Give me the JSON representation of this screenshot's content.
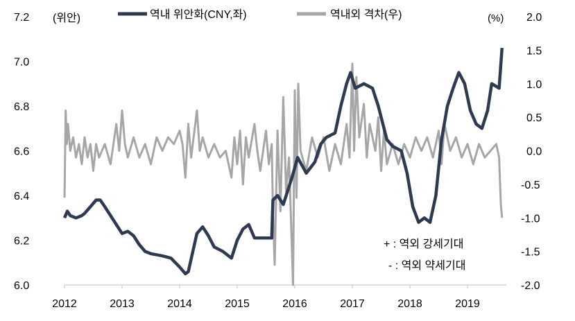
{
  "chart_data": {
    "type": "line",
    "title": "",
    "left_axis": {
      "unit_label": "(위안)",
      "ylim": [
        6.0,
        7.2
      ],
      "ticks": [
        "6.0",
        "6.2",
        "6.4",
        "6.6",
        "6.8",
        "7.0",
        "7.2"
      ]
    },
    "right_axis": {
      "unit_label": "(%)",
      "ylim": [
        -2.0,
        2.0
      ],
      "ticks": [
        "-2.0",
        "-1.5",
        "-1.0",
        "-0.5",
        "0.0",
        "0.5",
        "1.0",
        "1.5",
        "2.0"
      ]
    },
    "x_ticks": [
      "2012",
      "2013",
      "2014",
      "2015",
      "2016",
      "2017",
      "2018",
      "2019"
    ],
    "xlim": [
      2012.0,
      2019.65
    ],
    "legend_position": "top",
    "annotations": [
      "+ : 역외 강세기대",
      "- : 역외 약세기대"
    ],
    "series": [
      {
        "name": "역내 위안화(CNY,좌)",
        "axis": "left",
        "color": "#2e3a4f",
        "points": [
          [
            2012.0,
            6.3
          ],
          [
            2012.05,
            6.33
          ],
          [
            2012.1,
            6.31
          ],
          [
            2012.2,
            6.3
          ],
          [
            2012.3,
            6.31
          ],
          [
            2012.35,
            6.32
          ],
          [
            2012.45,
            6.35
          ],
          [
            2012.55,
            6.38
          ],
          [
            2012.62,
            6.38
          ],
          [
            2012.7,
            6.35
          ],
          [
            2012.8,
            6.31
          ],
          [
            2012.9,
            6.27
          ],
          [
            2013.0,
            6.23
          ],
          [
            2013.1,
            6.24
          ],
          [
            2013.2,
            6.22
          ],
          [
            2013.3,
            6.18
          ],
          [
            2013.4,
            6.15
          ],
          [
            2013.5,
            6.14
          ],
          [
            2013.7,
            6.13
          ],
          [
            2013.85,
            6.12
          ],
          [
            2014.0,
            6.08
          ],
          [
            2014.1,
            6.05
          ],
          [
            2014.15,
            6.06
          ],
          [
            2014.22,
            6.14
          ],
          [
            2014.3,
            6.23
          ],
          [
            2014.4,
            6.26
          ],
          [
            2014.5,
            6.22
          ],
          [
            2014.6,
            6.17
          ],
          [
            2014.75,
            6.15
          ],
          [
            2014.9,
            6.12
          ],
          [
            2015.0,
            6.2
          ],
          [
            2015.1,
            6.25
          ],
          [
            2015.2,
            6.27
          ],
          [
            2015.3,
            6.21
          ],
          [
            2015.45,
            6.21
          ],
          [
            2015.6,
            6.21
          ],
          [
            2015.62,
            6.38
          ],
          [
            2015.7,
            6.4
          ],
          [
            2015.8,
            6.36
          ],
          [
            2015.95,
            6.48
          ],
          [
            2016.05,
            6.57
          ],
          [
            2016.2,
            6.5
          ],
          [
            2016.35,
            6.55
          ],
          [
            2016.45,
            6.63
          ],
          [
            2016.55,
            6.66
          ],
          [
            2016.7,
            6.68
          ],
          [
            2016.8,
            6.8
          ],
          [
            2016.9,
            6.9
          ],
          [
            2016.97,
            6.95
          ],
          [
            2017.05,
            6.88
          ],
          [
            2017.2,
            6.9
          ],
          [
            2017.35,
            6.88
          ],
          [
            2017.45,
            6.8
          ],
          [
            2017.6,
            6.65
          ],
          [
            2017.7,
            6.62
          ],
          [
            2017.85,
            6.6
          ],
          [
            2017.95,
            6.5
          ],
          [
            2018.05,
            6.35
          ],
          [
            2018.15,
            6.28
          ],
          [
            2018.25,
            6.3
          ],
          [
            2018.35,
            6.28
          ],
          [
            2018.45,
            6.4
          ],
          [
            2018.55,
            6.65
          ],
          [
            2018.65,
            6.8
          ],
          [
            2018.75,
            6.88
          ],
          [
            2018.85,
            6.95
          ],
          [
            2018.95,
            6.9
          ],
          [
            2019.05,
            6.78
          ],
          [
            2019.15,
            6.72
          ],
          [
            2019.25,
            6.7
          ],
          [
            2019.35,
            6.78
          ],
          [
            2019.42,
            6.9
          ],
          [
            2019.55,
            6.88
          ],
          [
            2019.6,
            7.06
          ]
        ]
      },
      {
        "name": "역내외 격차(우)",
        "axis": "right",
        "color": "#a6a6a6",
        "points": [
          [
            2012.0,
            -0.7
          ],
          [
            2012.02,
            0.6
          ],
          [
            2012.04,
            0.1
          ],
          [
            2012.06,
            0.4
          ],
          [
            2012.1,
            0.0
          ],
          [
            2012.15,
            0.2
          ],
          [
            2012.2,
            -0.1
          ],
          [
            2012.25,
            0.1
          ],
          [
            2012.3,
            -0.2
          ],
          [
            2012.35,
            0.2
          ],
          [
            2012.4,
            -0.1
          ],
          [
            2012.45,
            0.1
          ],
          [
            2012.5,
            -0.3
          ],
          [
            2012.55,
            0.1
          ],
          [
            2012.6,
            -0.1
          ],
          [
            2012.7,
            0.1
          ],
          [
            2012.8,
            -0.2
          ],
          [
            2012.9,
            0.4
          ],
          [
            2012.95,
            0.0
          ],
          [
            2013.0,
            0.6
          ],
          [
            2013.05,
            0.1
          ],
          [
            2013.1,
            -0.1
          ],
          [
            2013.2,
            0.2
          ],
          [
            2013.3,
            -0.1
          ],
          [
            2013.4,
            0.1
          ],
          [
            2013.5,
            -0.2
          ],
          [
            2013.6,
            0.2
          ],
          [
            2013.7,
            0.0
          ],
          [
            2013.8,
            0.2
          ],
          [
            2013.9,
            0.1
          ],
          [
            2014.0,
            0.3
          ],
          [
            2014.05,
            0.1
          ],
          [
            2014.1,
            -0.4
          ],
          [
            2014.15,
            0.4
          ],
          [
            2014.2,
            -0.1
          ],
          [
            2014.3,
            0.6
          ],
          [
            2014.35,
            0.0
          ],
          [
            2014.4,
            0.2
          ],
          [
            2014.5,
            -0.1
          ],
          [
            2014.6,
            0.1
          ],
          [
            2014.7,
            -0.1
          ],
          [
            2014.8,
            0.0
          ],
          [
            2014.9,
            -0.4
          ],
          [
            2014.95,
            0.2
          ],
          [
            2015.0,
            -0.2
          ],
          [
            2015.05,
            0.3
          ],
          [
            2015.1,
            -0.5
          ],
          [
            2015.15,
            0.2
          ],
          [
            2015.2,
            -0.1
          ],
          [
            2015.3,
            0.4
          ],
          [
            2015.35,
            0.0
          ],
          [
            2015.4,
            -0.3
          ],
          [
            2015.5,
            0.3
          ],
          [
            2015.55,
            -0.2
          ],
          [
            2015.6,
            0.1
          ],
          [
            2015.62,
            -0.9
          ],
          [
            2015.65,
            -1.7
          ],
          [
            2015.7,
            0.3
          ],
          [
            2015.75,
            -0.9
          ],
          [
            2015.8,
            0.8
          ],
          [
            2015.85,
            -0.6
          ],
          [
            2015.9,
            -0.1
          ],
          [
            2015.97,
            -2.0
          ],
          [
            2016.0,
            0.9
          ],
          [
            2016.03,
            -0.7
          ],
          [
            2016.06,
            1.0
          ],
          [
            2016.1,
            0.0
          ],
          [
            2016.2,
            -0.3
          ],
          [
            2016.3,
            0.2
          ],
          [
            2016.4,
            -0.1
          ],
          [
            2016.5,
            0.2
          ],
          [
            2016.6,
            -0.3
          ],
          [
            2016.7,
            0.1
          ],
          [
            2016.8,
            -0.2
          ],
          [
            2016.9,
            0.4
          ],
          [
            2016.95,
            -0.1
          ],
          [
            2017.0,
            1.3
          ],
          [
            2017.03,
            0.0
          ],
          [
            2017.07,
            1.1
          ],
          [
            2017.12,
            0.2
          ],
          [
            2017.2,
            0.7
          ],
          [
            2017.25,
            -0.1
          ],
          [
            2017.3,
            0.4
          ],
          [
            2017.4,
            0.0
          ],
          [
            2017.45,
            0.5
          ],
          [
            2017.5,
            -0.3
          ],
          [
            2017.55,
            0.3
          ],
          [
            2017.6,
            -0.2
          ],
          [
            2017.7,
            0.1
          ],
          [
            2017.8,
            -0.2
          ],
          [
            2017.9,
            0.1
          ],
          [
            2018.0,
            -0.1
          ],
          [
            2018.1,
            0.2
          ],
          [
            2018.2,
            0.0
          ],
          [
            2018.3,
            0.2
          ],
          [
            2018.4,
            -0.1
          ],
          [
            2018.5,
            0.3
          ],
          [
            2018.55,
            -0.2
          ],
          [
            2018.6,
            0.4
          ],
          [
            2018.7,
            0.0
          ],
          [
            2018.8,
            0.2
          ],
          [
            2018.9,
            -0.1
          ],
          [
            2019.0,
            0.1
          ],
          [
            2019.1,
            -0.2
          ],
          [
            2019.2,
            0.1
          ],
          [
            2019.3,
            -0.1
          ],
          [
            2019.4,
            0.0
          ],
          [
            2019.5,
            0.1
          ],
          [
            2019.55,
            -0.1
          ],
          [
            2019.58,
            -0.8
          ],
          [
            2019.6,
            -1.0
          ]
        ]
      }
    ]
  }
}
